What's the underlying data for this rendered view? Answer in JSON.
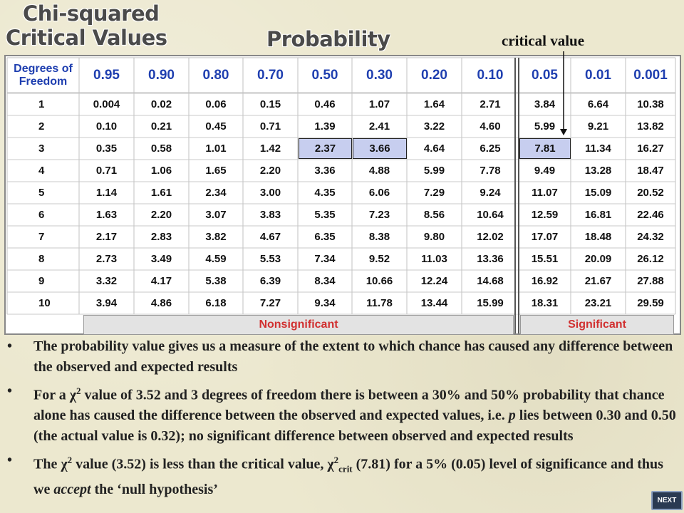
{
  "titles": {
    "line1": "Chi-squared",
    "line2": "Critical Values",
    "probability": "Probability",
    "critical_value": "critical value"
  },
  "table": {
    "df_header_line1": "Degrees of",
    "df_header_line2": "Freedom",
    "probabilities": [
      "0.95",
      "0.90",
      "0.80",
      "0.70",
      "0.50",
      "0.30",
      "0.20",
      "0.10",
      "0.05",
      "0.01",
      "0.001"
    ],
    "rows": [
      {
        "df": "1",
        "values": [
          "0.004",
          "0.02",
          "0.06",
          "0.15",
          "0.46",
          "1.07",
          "1.64",
          "2.71",
          "3.84",
          "6.64",
          "10.38"
        ]
      },
      {
        "df": "2",
        "values": [
          "0.10",
          "0.21",
          "0.45",
          "0.71",
          "1.39",
          "2.41",
          "3.22",
          "4.60",
          "5.99",
          "9.21",
          "13.82"
        ]
      },
      {
        "df": "3",
        "values": [
          "0.35",
          "0.58",
          "1.01",
          "1.42",
          "2.37",
          "3.66",
          "4.64",
          "6.25",
          "7.81",
          "11.34",
          "16.27"
        ]
      },
      {
        "df": "4",
        "values": [
          "0.71",
          "1.06",
          "1.65",
          "2.20",
          "3.36",
          "4.88",
          "5.99",
          "7.78",
          "9.49",
          "13.28",
          "18.47"
        ]
      },
      {
        "df": "5",
        "values": [
          "1.14",
          "1.61",
          "2.34",
          "3.00",
          "4.35",
          "6.06",
          "7.29",
          "9.24",
          "11.07",
          "15.09",
          "20.52"
        ]
      },
      {
        "df": "6",
        "values": [
          "1.63",
          "2.20",
          "3.07",
          "3.83",
          "5.35",
          "7.23",
          "8.56",
          "10.64",
          "12.59",
          "16.81",
          "22.46"
        ]
      },
      {
        "df": "7",
        "values": [
          "2.17",
          "2.83",
          "3.82",
          "4.67",
          "6.35",
          "8.38",
          "9.80",
          "12.02",
          "17.07",
          "18.48",
          "24.32"
        ]
      },
      {
        "df": "8",
        "values": [
          "2.73",
          "3.49",
          "4.59",
          "5.53",
          "7.34",
          "9.52",
          "11.03",
          "13.36",
          "15.51",
          "20.09",
          "26.12"
        ]
      },
      {
        "df": "9",
        "values": [
          "3.32",
          "4.17",
          "5.38",
          "6.39",
          "8.34",
          "10.66",
          "12.24",
          "14.68",
          "16.92",
          "21.67",
          "27.88"
        ]
      },
      {
        "df": "10",
        "values": [
          "3.94",
          "4.86",
          "6.18",
          "7.27",
          "9.34",
          "11.78",
          "13.44",
          "15.99",
          "18.31",
          "23.21",
          "29.59"
        ]
      }
    ],
    "highlighted": [
      [
        2,
        4
      ],
      [
        2,
        5
      ],
      [
        2,
        8
      ]
    ],
    "nonsignificant": "Nonsignificant",
    "significant": "Significant"
  },
  "bullets": [
    {
      "parts": [
        {
          "t": "The probability value gives us a measure of the extent to which chance has caused any difference between the observed and expected results"
        }
      ]
    },
    {
      "parts": [
        {
          "t": "For a "
        },
        {
          "t": "χ"
        },
        {
          "t": "2",
          "sup": true
        },
        {
          "t": " value of 3.52 and 3 degrees of freedom there is between a 30% and 50% probability that chance alone has caused the difference between the observed and expected values, i.e. "
        },
        {
          "t": "p",
          "i": true
        },
        {
          "t": " lies between 0.30 and 0.50 (the actual value is 0.32); no significant difference between observed and expected results"
        }
      ]
    },
    {
      "parts": [
        {
          "t": "The "
        },
        {
          "t": "χ"
        },
        {
          "t": "2",
          "sup": true
        },
        {
          "t": " value (3.52) is less than the critical value, "
        },
        {
          "t": "χ"
        },
        {
          "t": "2",
          "sup": true
        },
        {
          "t": "crit",
          "sub": true
        },
        {
          "t": " (7.81) for a 5% (0.05) level of significance and thus we "
        },
        {
          "t": "accept",
          "i": true
        },
        {
          "t": " the ‘null hypothesis’"
        }
      ]
    }
  ],
  "nav": {
    "next_label": "NEXT"
  },
  "colors": {
    "header_text": "#1f3fb0",
    "highlight_fill": "#c7ceef",
    "band_text": "#d13030",
    "background": "#ece8cf"
  }
}
